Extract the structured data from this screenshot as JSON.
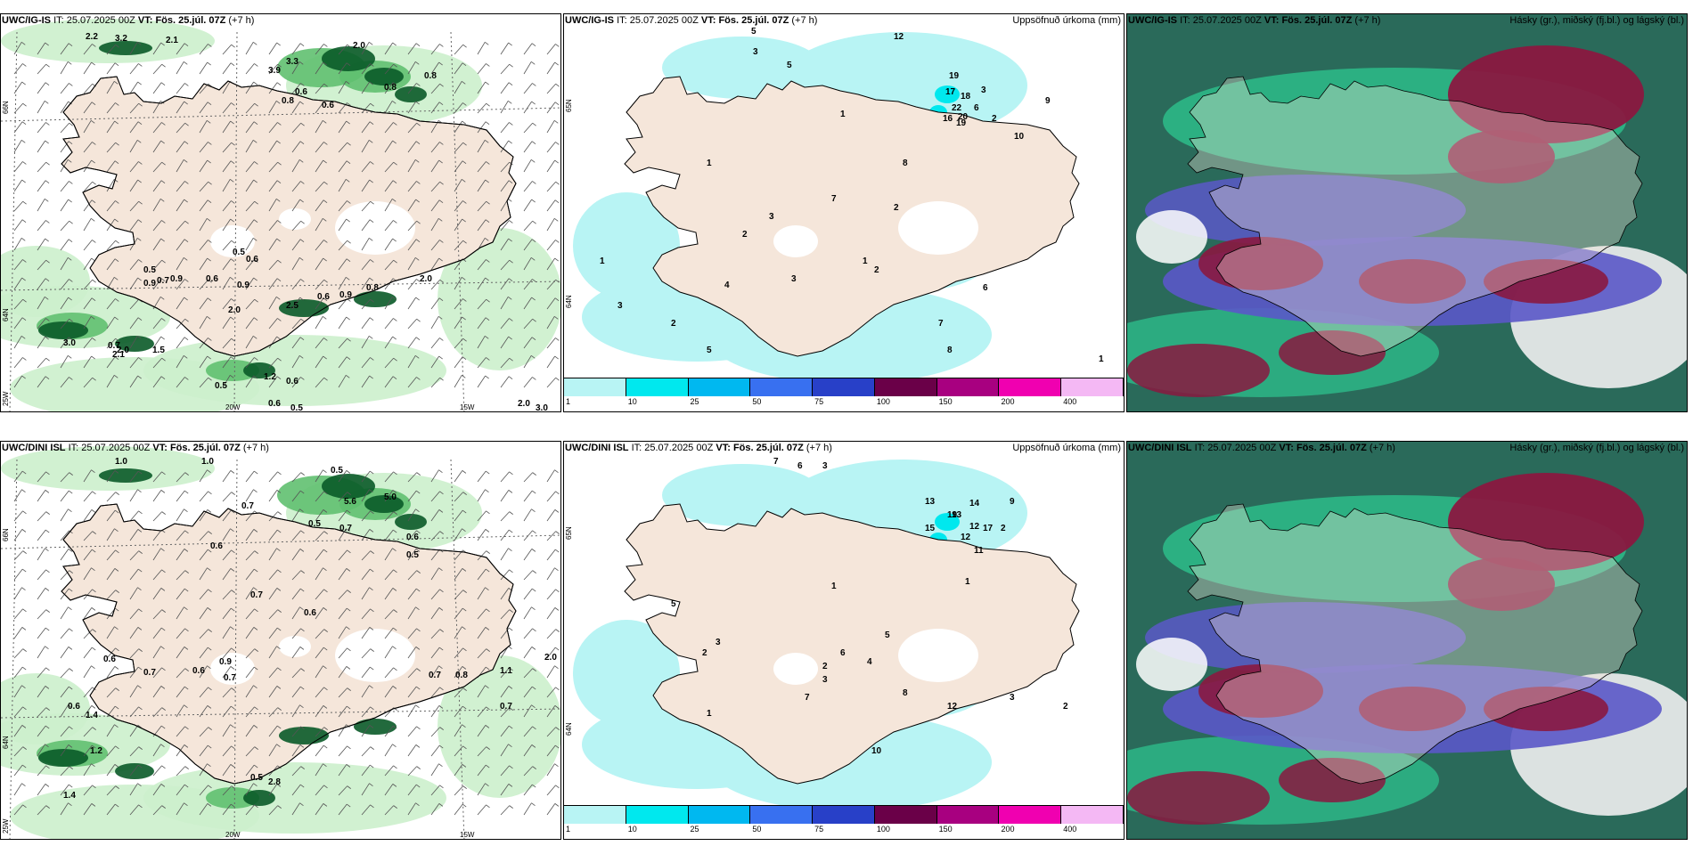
{
  "rows": [
    {
      "wind_panel": {
        "model": "UWC/IG-IS",
        "it_label": "IT:",
        "it_value": "25.07.2025 00Z",
        "vt_label": "VT:",
        "vt_value": "Fös. 25.júl. 07Z",
        "lead": "(+7 h)",
        "axis_lat_66": "66N",
        "axis_lat_64": "64N",
        "axis_lon_25": "25W",
        "axis_lon_20": "20W",
        "axis_lon_15": "15W",
        "values": [
          "2.2",
          "3.2",
          "2.1",
          "3.3",
          "3.9",
          "2.0",
          "0.6",
          "0.8",
          "0.8",
          "0.5",
          "0.6",
          "0.6",
          "0.9",
          "0.5",
          "0.9",
          "0.7",
          "0.9",
          "0.6",
          "2.0",
          "2.5",
          "0.9",
          "2.0",
          "3.0",
          "2.1",
          "0.7",
          "2.0",
          "1.5",
          "1.2",
          "0.5",
          "0.6",
          "0.5",
          "0.6",
          "2.0",
          "3.0",
          "0.8",
          "0.6",
          "0.8"
        ]
      },
      "precip_panel": {
        "model": "UWC/IG-IS",
        "it_label": "IT:",
        "it_value": "25.07.2025 00Z",
        "vt_label": "VT:",
        "vt_value": "Fös. 25.júl. 07Z",
        "lead": "(+7 h)",
        "title": "Uppsöfnuð úrkoma (mm)",
        "axis_lat_65": "65N",
        "axis_lat_64": "64N",
        "values": [
          "5",
          "3",
          "5",
          "12",
          "19",
          "18",
          "22",
          "20",
          "17",
          "16",
          "19",
          "6",
          "2",
          "3",
          "1",
          "2",
          "1",
          "1",
          "2",
          "3",
          "4",
          "5",
          "6",
          "7",
          "8",
          "9",
          "10",
          "8",
          "7",
          "3",
          "2",
          "1",
          "1",
          "2",
          "3"
        ]
      },
      "cloud_panel": {
        "model": "UWC/IG-IS",
        "it_label": "IT:",
        "it_value": "25.07.2025 00Z",
        "vt_label": "VT:",
        "vt_value": "Fös. 25.júl. 07Z",
        "lead": "(+7 h)",
        "title": "Hásky (gr.), miðský (fj.bl.) og lágský (bl.)"
      }
    },
    {
      "wind_panel": {
        "model": "UWC/DINI ISL",
        "it_label": "IT:",
        "it_value": "25.07.2025 00Z",
        "vt_label": "VT:",
        "vt_value": "Fös. 25.júl. 07Z",
        "lead": "(+7 h)",
        "axis_lat_66": "66N",
        "axis_lat_64": "64N",
        "axis_lon_25": "25W",
        "axis_lon_20": "20W",
        "axis_lon_15": "15W",
        "values": [
          "1.0",
          "1.0",
          "0.5",
          "0.7",
          "5.6",
          "5.0",
          "0.5",
          "0.7",
          "0.6",
          "0.6",
          "0.5",
          "0.7",
          "0.6",
          "0.9",
          "0.6",
          "0.6",
          "0.7",
          "0.7",
          "1.4",
          "1.2",
          "0.5",
          "2.8",
          "0.7",
          "0.8",
          "2.0",
          "1.1",
          "0.6",
          "1.4",
          "0.7"
        ]
      },
      "precip_panel": {
        "model": "UWC/DINI ISL",
        "it_label": "IT:",
        "it_value": "25.07.2025 00Z",
        "vt_label": "VT:",
        "vt_value": "Fös. 25.júl. 07Z",
        "lead": "(+7 h)",
        "title": "Uppsöfnuð úrkoma (mm)",
        "axis_lat_65": "65N",
        "axis_lat_64": "64N",
        "values": [
          "7",
          "6",
          "3",
          "13",
          "19",
          "14",
          "12",
          "17",
          "11",
          "12",
          "13",
          "15",
          "9",
          "2",
          "1",
          "1",
          "5",
          "3",
          "2",
          "1",
          "10",
          "3",
          "2",
          "4",
          "5",
          "6",
          "7",
          "8",
          "12",
          "3",
          "2"
        ]
      },
      "cloud_panel": {
        "model": "UWC/DINI ISL",
        "it_label": "IT:",
        "it_value": "25.07.2025 00Z",
        "vt_label": "VT:",
        "vt_value": "Fös. 25.júl. 07Z",
        "lead": "(+7 h)",
        "title": "Hásky (gr.), miðský (fj.bl.) og lágský (bl.)"
      }
    }
  ],
  "colorbar": {
    "ticks": [
      "1",
      "10",
      "25",
      "50",
      "75",
      "100",
      "150",
      "200",
      "400"
    ],
    "colors": [
      "#b8f4f4",
      "#00e8ee",
      "#00b8f0",
      "#3870f0",
      "#2840c8",
      "#6a0048",
      "#a80080",
      "#f000b0",
      "#f4b8f4"
    ]
  },
  "colors": {
    "land": "#f5e6da",
    "coast": "#000000",
    "light_green": "#ccf0cc",
    "mid_green": "#60c070",
    "dark_green": "#0a5a28",
    "cyan_light": "#b8f4f4",
    "cloud_dark_green": "#2a6a5a",
    "cloud_green": "#2ec890",
    "cloud_blue": "#5a58c8",
    "cloud_maroon": "#8a1840"
  }
}
